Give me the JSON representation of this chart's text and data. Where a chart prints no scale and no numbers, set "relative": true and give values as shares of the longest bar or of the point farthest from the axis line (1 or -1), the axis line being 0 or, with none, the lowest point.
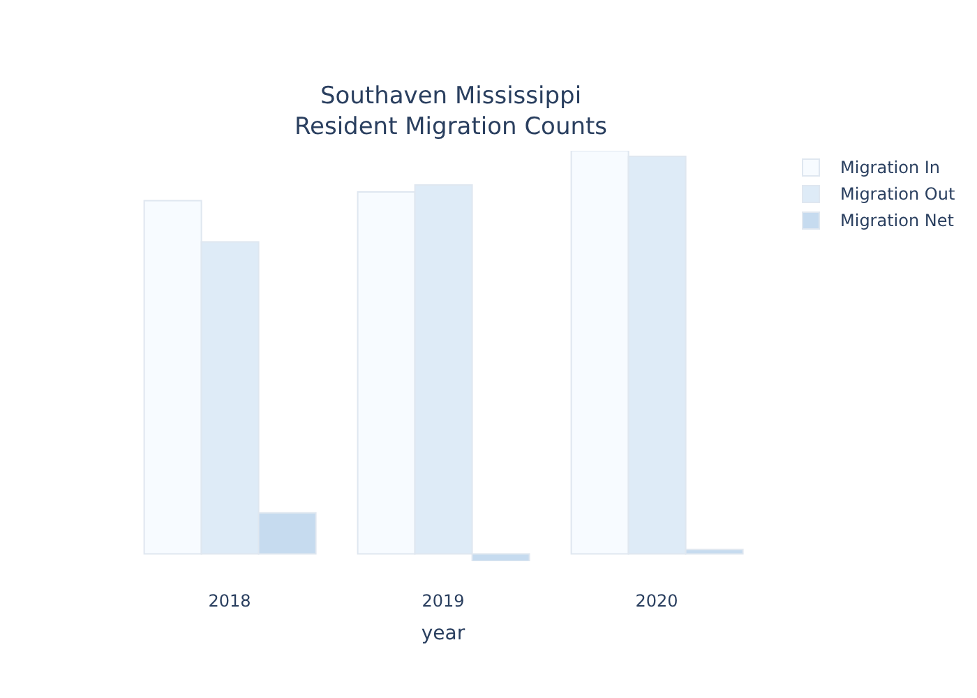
{
  "chart_data": {
    "type": "bar",
    "title": "Southaven Mississippi\nResident Migration Counts",
    "xlabel": "year",
    "categories": [
      "2018",
      "2019",
      "2020"
    ],
    "relative": true,
    "legend": "top right",
    "grid": false,
    "series": [
      {
        "name": "Migration In",
        "color": "#f7fbff",
        "values": [
          0.876,
          0.898,
          1
        ]
      },
      {
        "name": "Migration Out",
        "color": "#deebf7",
        "values": [
          0.774,
          0.915,
          0.986
        ]
      },
      {
        "name": "Migration Net",
        "color": "#c6dbef",
        "values": [
          0.102,
          -0.018,
          0.011
        ]
      }
    ]
  }
}
